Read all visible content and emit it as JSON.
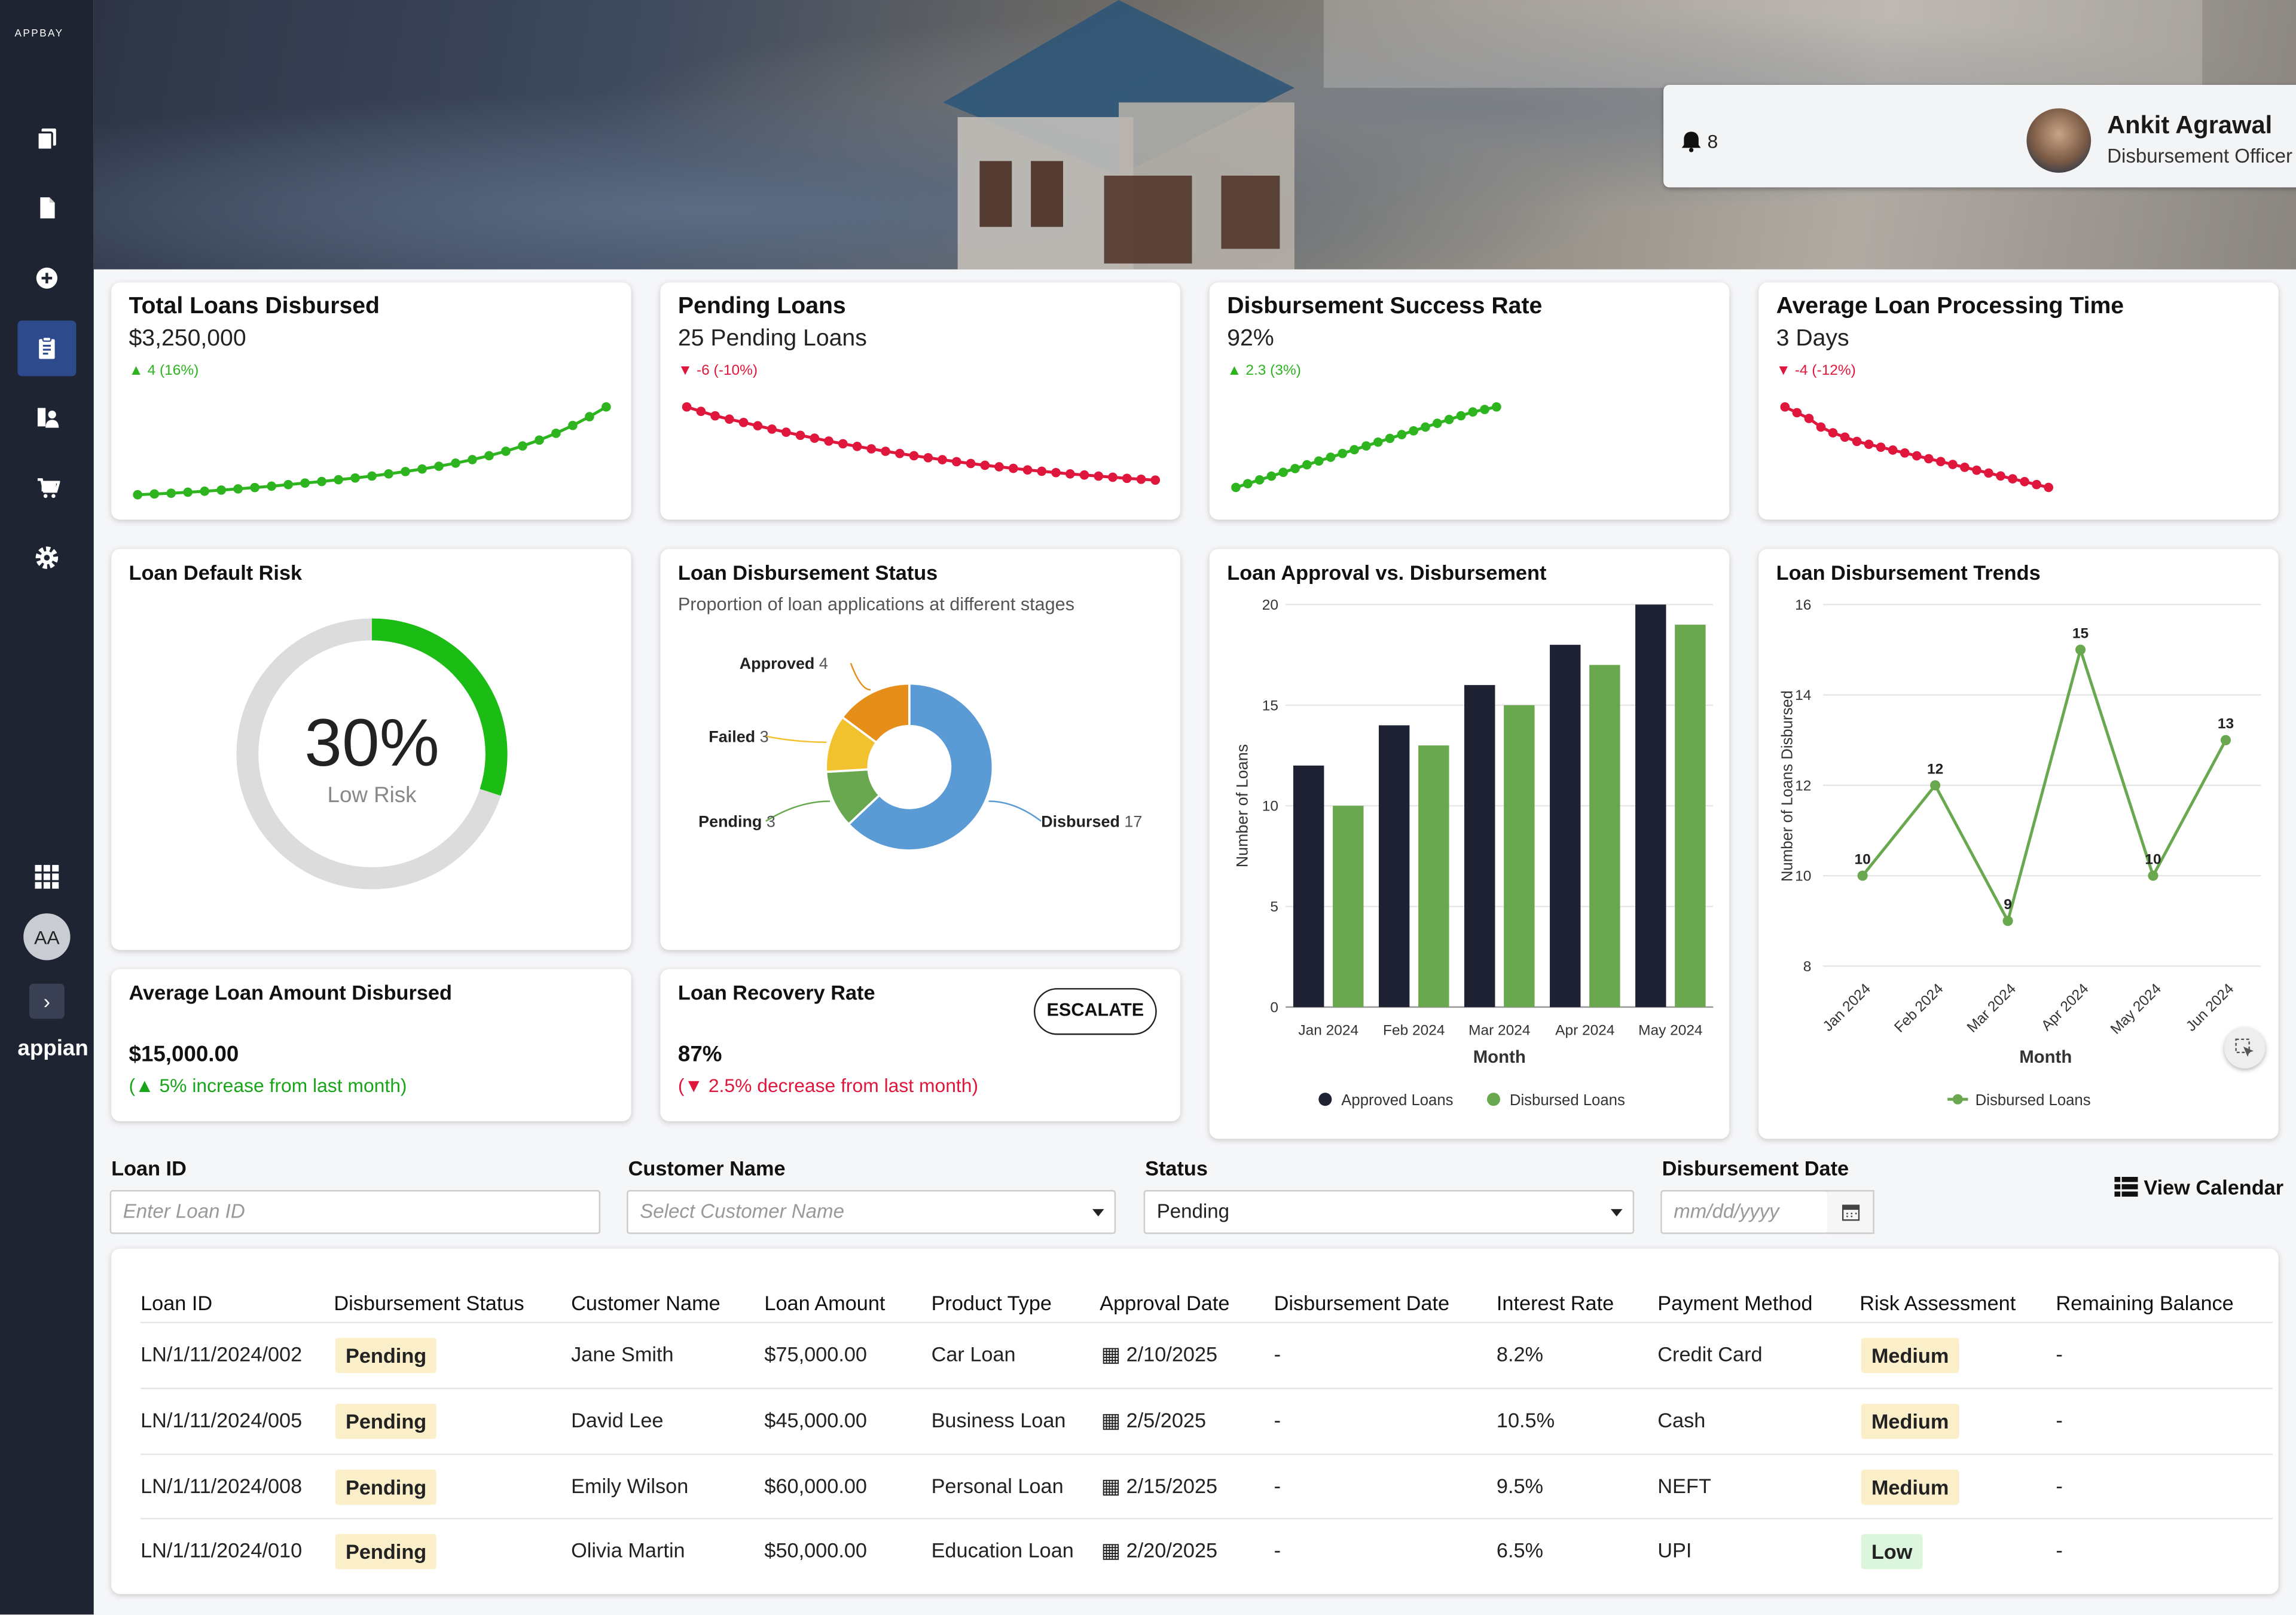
{
  "sidebar": {
    "logo": "APPBAY",
    "avatar_initials": "AA",
    "brand": "appian",
    "icons": [
      "documents-icon",
      "file-icon",
      "add-circle-icon",
      "clipboard-icon",
      "chart-person-icon",
      "cart-icon",
      "gear-icon",
      "apps-grid-icon"
    ]
  },
  "header": {
    "notifications_count": "8",
    "user_name": "Ankit Agrawal",
    "user_role": "Disbursement Officer"
  },
  "colors": {
    "up": "#2db41f",
    "down": "#e0173c",
    "approved_bar": "#1e2233",
    "disbursed_bar": "#6aa84f",
    "gauge": "#1bbd14",
    "donut_disbursed": "#5b9bd5",
    "donut_pending": "#6aa84f",
    "donut_failed": "#f2c12e",
    "donut_approved": "#e58e1a"
  },
  "kpis": [
    {
      "title": "Total Loans Disbursed",
      "value": "$3,250,000",
      "delta": "4 (16%)",
      "trend": "up",
      "series": [
        10,
        10.4,
        10.8,
        11.3,
        11.8,
        12.4,
        13,
        13.7,
        14.4,
        15.2,
        16,
        16.8,
        17.7,
        18.6,
        19.6,
        20.7,
        21.9,
        23.2,
        24.6,
        26.2,
        28,
        30,
        32.3,
        35,
        38,
        41.5,
        45.5,
        50,
        55
      ]
    },
    {
      "title": "Pending Loans",
      "value": "25 Pending Loans",
      "delta": "-6 (-10%)",
      "trend": "down",
      "series": [
        55,
        53,
        51,
        49.5,
        48,
        46.5,
        45,
        43.6,
        42.2,
        40.9,
        39.6,
        38.4,
        37.2,
        36.1,
        35,
        34,
        33,
        32.1,
        31.2,
        30.3,
        29.5,
        28.7,
        28,
        27.3,
        26.6,
        26,
        25.4,
        24.8,
        24.3,
        23.8,
        23.3,
        22.8,
        22.4,
        22
      ]
    },
    {
      "title": "Disbursement Success Rate",
      "value": "92%",
      "delta": "2.3 (3%)",
      "trend": "up",
      "series": [
        10,
        13,
        16,
        19,
        22,
        25,
        28,
        31,
        34,
        37,
        40,
        43,
        46,
        49,
        52,
        55,
        58,
        61,
        64,
        67,
        70,
        72,
        74
      ]
    },
    {
      "title": "Average Loan Processing Time",
      "value": "3 Days",
      "delta": "-4 (-12%)",
      "trend": "down",
      "series": [
        80,
        76,
        72,
        66,
        62,
        59,
        56,
        54,
        52,
        50,
        48,
        46,
        44,
        42,
        40,
        38,
        36,
        34,
        32,
        30,
        28,
        26,
        24
      ]
    }
  ],
  "default_risk": {
    "title": "Loan Default Risk",
    "percent": 30,
    "label": "30%",
    "sublabel": "Low Risk"
  },
  "disbursement_status": {
    "title": "Loan Disbursement Status",
    "subtitle": "Proportion of loan applications at different stages"
  },
  "approval_vs_disbursement": {
    "title": "Loan Approval vs. Disbursement"
  },
  "trends": {
    "title": "Loan Disbursement Trends"
  },
  "avg_amount": {
    "title": "Average Loan Amount Disbursed",
    "value": "$15,000.00",
    "note": "(▲ 5% increase from last month)"
  },
  "recovery": {
    "title": "Loan Recovery Rate",
    "value": "87%",
    "note": "(▼ 2.5% decrease from last month)",
    "escalate": "ESCALATE"
  },
  "filters": {
    "loan_id": {
      "label": "Loan ID",
      "placeholder": "Enter Loan ID"
    },
    "customer_name": {
      "label": "Customer Name",
      "placeholder": "Select Customer Name"
    },
    "status": {
      "label": "Status",
      "value": "Pending"
    },
    "date": {
      "label": "Disbursement Date",
      "placeholder": "mm/dd/yyyy"
    },
    "view_calendar": "View Calendar"
  },
  "table": {
    "headers": [
      "Loan ID",
      "Disbursement Status",
      "Customer Name",
      "Loan Amount",
      "Product Type",
      "Approval Date",
      "Disbursement Date",
      "Interest Rate",
      "Payment Method",
      "Risk Assessment",
      "Remaining Balance"
    ],
    "rows": [
      [
        "LN/1/11/2024/002",
        "Pending",
        "Jane Smith",
        "$75,000.00",
        "Car Loan",
        "2/10/2025",
        "-",
        "8.2%",
        "Credit Card",
        "Medium",
        "-"
      ],
      [
        "LN/1/11/2024/005",
        "Pending",
        "David Lee",
        "$45,000.00",
        "Business Loan",
        "2/5/2025",
        "-",
        "10.5%",
        "Cash",
        "Medium",
        "-"
      ],
      [
        "LN/1/11/2024/008",
        "Pending",
        "Emily Wilson",
        "$60,000.00",
        "Personal Loan",
        "2/15/2025",
        "-",
        "9.5%",
        "NEFT",
        "Medium",
        "-"
      ],
      [
        "LN/1/11/2024/010",
        "Pending",
        "Olivia Martin",
        "$50,000.00",
        "Education Loan",
        "2/20/2025",
        "-",
        "6.5%",
        "UPI",
        "Low",
        "-"
      ]
    ]
  },
  "chart_data": [
    {
      "type": "pie",
      "title": "Loan Disbursement Status",
      "categories": [
        "Disbursed",
        "Pending",
        "Failed",
        "Approved"
      ],
      "values": [
        17,
        3,
        3,
        4
      ]
    },
    {
      "type": "bar",
      "title": "Loan Approval vs. Disbursement",
      "categories": [
        "Jan 2024",
        "Feb 2024",
        "Mar 2024",
        "Apr 2024",
        "May 2024"
      ],
      "series": [
        {
          "name": "Approved Loans",
          "values": [
            12,
            14,
            16,
            18,
            20
          ]
        },
        {
          "name": "Disbursed Loans",
          "values": [
            10,
            13,
            15,
            17,
            19
          ]
        }
      ],
      "xlabel": "Month",
      "ylabel": "Number of Loans",
      "ylim": [
        0,
        20
      ],
      "yticks": [
        "0",
        "5",
        "10",
        "15",
        "20"
      ],
      "legend": "bottom"
    },
    {
      "type": "line",
      "title": "Loan Disbursement Trends",
      "categories": [
        "Jan 2024",
        "Feb 2024",
        "Mar 2024",
        "Apr 2024",
        "May 2024",
        "Jun 2024"
      ],
      "series": [
        {
          "name": "Disbursed Loans",
          "values": [
            10,
            12,
            9,
            15,
            10,
            13
          ]
        }
      ],
      "xlabel": "Month",
      "ylabel": "Number of Loans Disbursed",
      "ylim": [
        8,
        16
      ],
      "yticks": [
        "8",
        "10",
        "12",
        "14",
        "16"
      ],
      "legend": "bottom"
    }
  ]
}
